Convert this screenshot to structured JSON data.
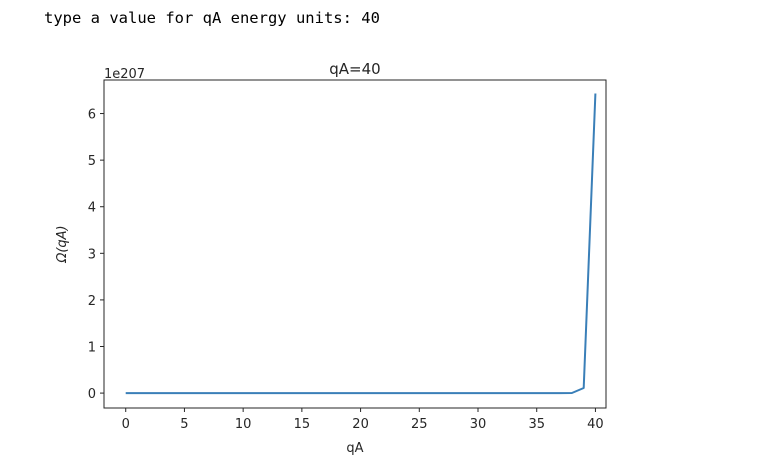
{
  "prompt": {
    "text": "type a value for qA energy units: ",
    "value": "40"
  },
  "chart_data": {
    "type": "line",
    "title": "qA=40",
    "xlabel": "qA",
    "ylabel": "Ω(qA)",
    "y_offset_label": "1e207",
    "xlim": [
      -1.85,
      40.9
    ],
    "ylim": [
      -0.32,
      6.72
    ],
    "xticks": [
      0,
      5,
      10,
      15,
      20,
      25,
      30,
      35,
      40
    ],
    "xtick_labels": [
      "0",
      "5",
      "10",
      "15",
      "20",
      "25",
      "30",
      "35",
      "40"
    ],
    "yticks": [
      0,
      1,
      2,
      3,
      4,
      5,
      6
    ],
    "ytick_labels": [
      "0",
      "1",
      "2",
      "3",
      "4",
      "5",
      "6"
    ],
    "grid": false,
    "line_color": "#3a7fb8",
    "series": [
      {
        "x": [
          0,
          1,
          2,
          3,
          4,
          5,
          6,
          7,
          8,
          9,
          10,
          11,
          12,
          13,
          14,
          15,
          16,
          17,
          18,
          19,
          20,
          21,
          22,
          23,
          24,
          25,
          26,
          27,
          28,
          29,
          30,
          31,
          32,
          33,
          34,
          35,
          36,
          37,
          38,
          39,
          40
        ],
        "values": [
          0,
          0,
          0,
          0,
          0,
          0,
          0,
          0,
          0,
          0,
          0,
          0,
          0,
          0,
          0,
          0,
          0,
          0,
          0,
          0,
          0,
          0,
          0,
          0,
          0,
          0,
          0,
          0,
          0,
          0,
          0,
          0,
          0,
          0,
          0,
          0,
          0,
          0,
          0.002,
          0.11,
          6.43
        ]
      }
    ]
  }
}
